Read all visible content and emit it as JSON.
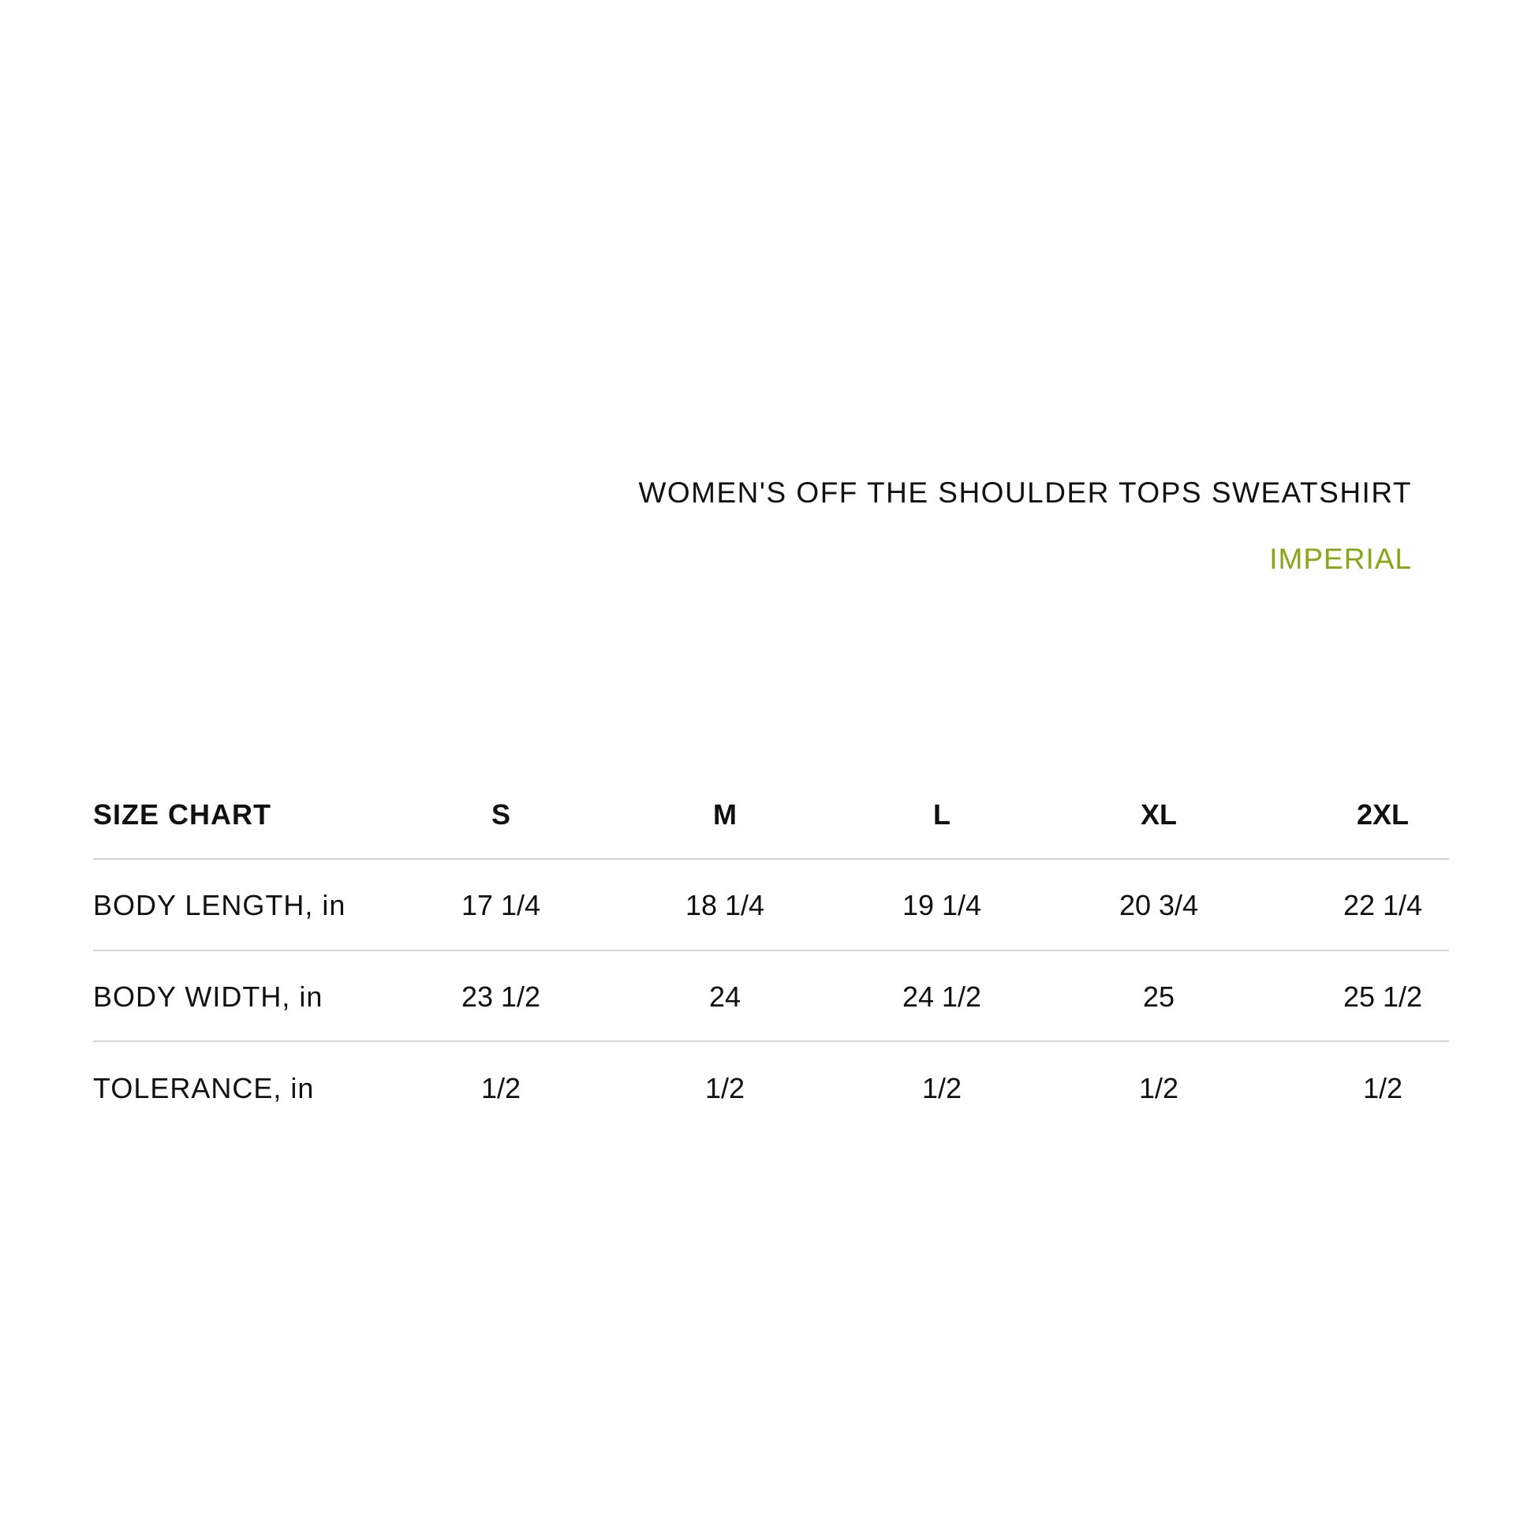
{
  "header": {
    "title": "WOMEN'S OFF THE SHOULDER TOPS SWEATSHIRT",
    "unit_system": "IMPERIAL",
    "accent_color": "#86a813"
  },
  "table": {
    "corner_label": "SIZE CHART",
    "sizes": [
      "S",
      "M",
      "L",
      "XL",
      "2XL"
    ],
    "rows": [
      {
        "label": "BODY LENGTH, in",
        "values": [
          "17 1/4",
          "18 1/4",
          "19 1/4",
          "20 3/4",
          "22 1/4"
        ]
      },
      {
        "label": "BODY WIDTH, in",
        "values": [
          "23 1/2",
          "24",
          "24 1/2",
          "25",
          "25 1/2"
        ]
      },
      {
        "label": "TOLERANCE, in",
        "values": [
          "1/2",
          "1/2",
          "1/2",
          "1/2",
          "1/2"
        ]
      }
    ]
  }
}
